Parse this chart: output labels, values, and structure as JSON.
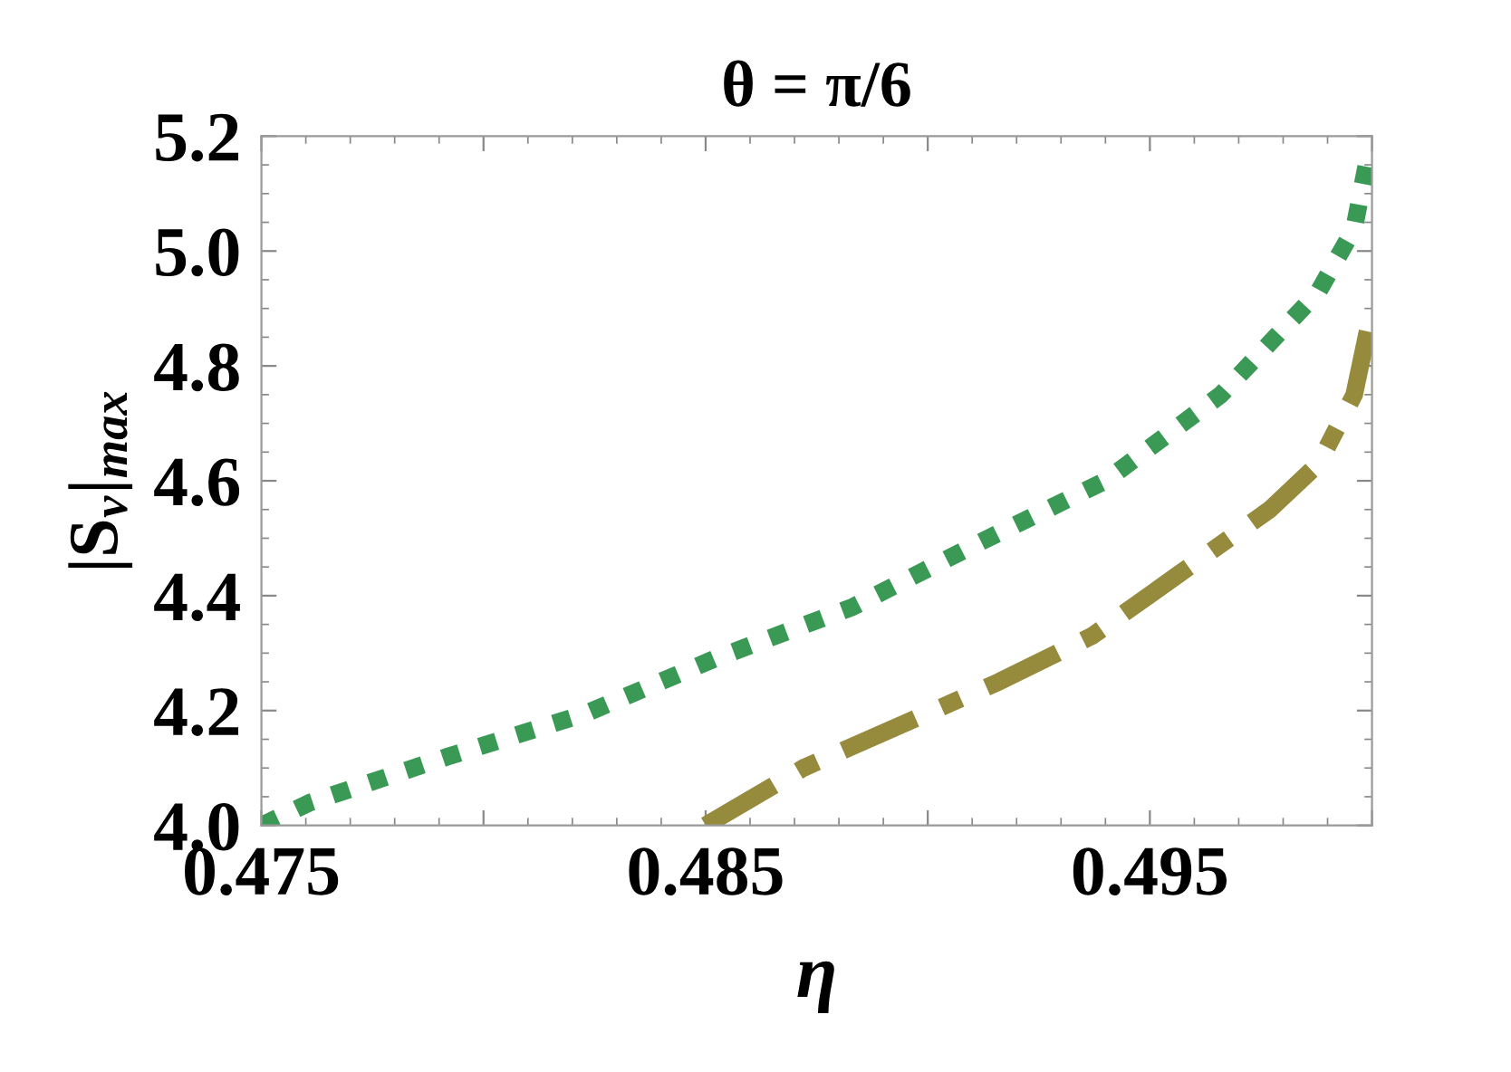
{
  "chart_data": {
    "type": "line",
    "title": "θ = π/6",
    "xlabel": "η",
    "ylabel": "|S$_{v}$|$_{max}$",
    "xlim": [
      0.475,
      0.5
    ],
    "ylim": [
      4.0,
      5.2
    ],
    "xticks": [
      0.475,
      {
        "value": 0.48,
        "label": null
      },
      0.485,
      {
        "value": 0.49,
        "label": null
      },
      0.495,
      {
        "value": 0.5,
        "label": null
      }
    ],
    "yticks": [
      {
        "value": 4.0,
        "label": "4.0"
      },
      {
        "value": 4.2,
        "label": "4.2"
      },
      {
        "value": 4.4,
        "label": "4.4"
      },
      {
        "value": 4.6,
        "label": "4.6"
      },
      {
        "value": 4.8,
        "label": "4.8"
      },
      {
        "value": 5.0,
        "label": "5.0"
      },
      {
        "value": 5.2,
        "label": "5.2"
      }
    ],
    "grid": false,
    "legend": false,
    "series": [
      {
        "color": "#3a9a55",
        "line_style": "dotted",
        "x": [
          0.475,
          0.4761,
          0.4792,
          0.4823,
          0.4852,
          0.4883,
          0.4911,
          0.494,
          0.4966,
          0.4988,
          0.4996,
          0.4999
        ],
        "values": [
          4.0,
          4.04,
          4.12,
          4.195,
          4.29,
          4.38,
          4.49,
          4.6,
          4.75,
          4.93,
          5.04,
          5.16
        ]
      },
      {
        "color": "#968a3c",
        "line_style": "dashdot",
        "x": [
          0.485,
          0.4872,
          0.4916,
          0.4937,
          0.4957,
          0.4977,
          0.4988,
          0.4996,
          0.4999
        ],
        "values": [
          4.0,
          4.1,
          4.25,
          4.33,
          4.44,
          4.55,
          4.63,
          4.75,
          4.86
        ]
      }
    ]
  }
}
